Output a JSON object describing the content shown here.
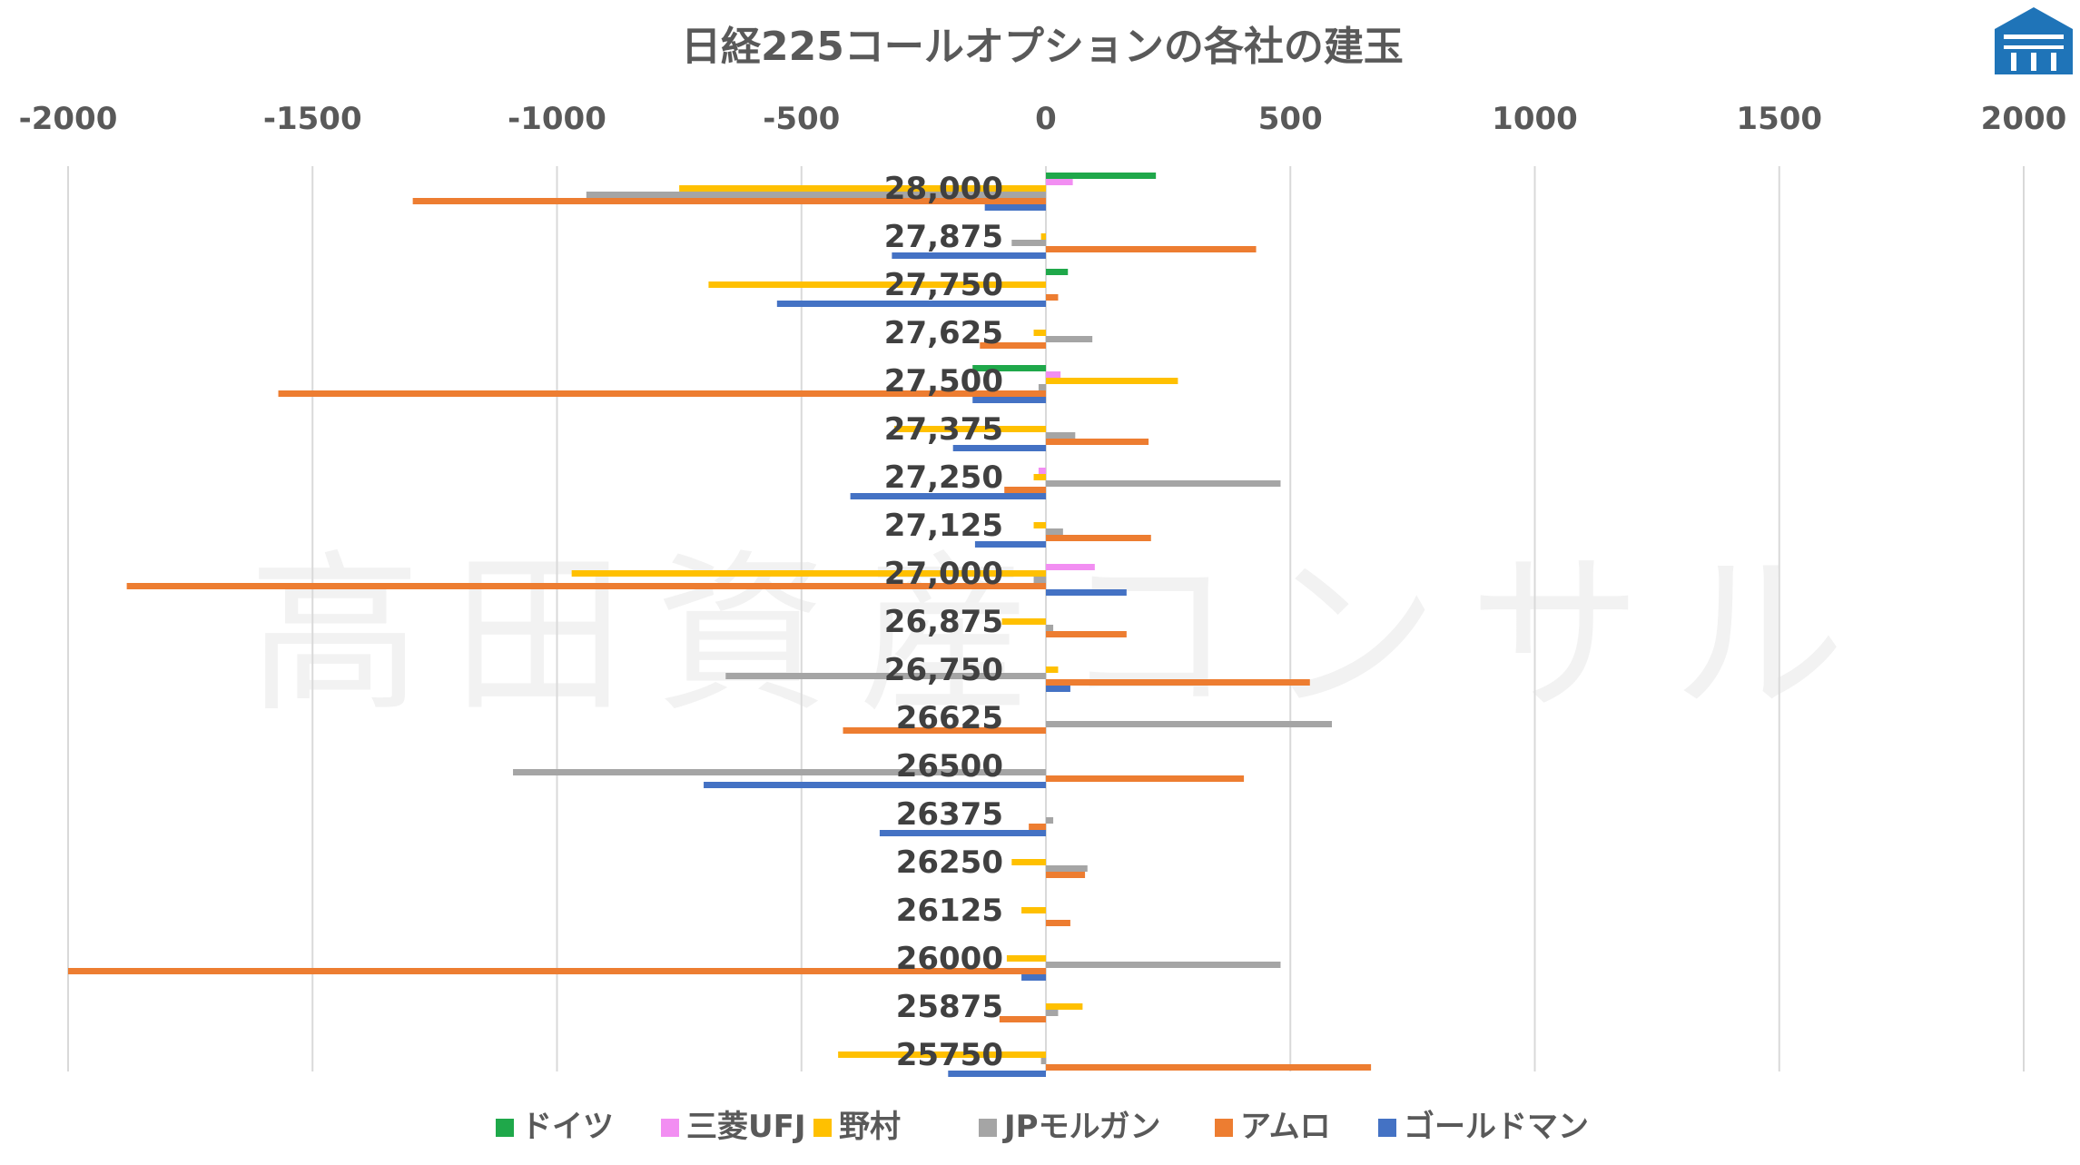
{
  "chart_data": {
    "type": "bar",
    "orientation": "horizontal",
    "title": "日経225コールオプションの各社の建玉",
    "xlim": [
      -2000,
      2000
    ],
    "xticks": [
      -2000,
      -1500,
      -1000,
      -500,
      0,
      500,
      1000,
      1500,
      2000
    ],
    "xtick_labels": [
      "-2000",
      "-1500",
      "-1000",
      "-500",
      "0",
      "500",
      "1000",
      "1500",
      "2000"
    ],
    "grid": true,
    "legend_position": "bottom",
    "watermark": "高田資産コンサル",
    "categories": [
      "28,000",
      "27,875",
      "27,750",
      "27,625",
      "27,500",
      "27,375",
      "27,250",
      "27,125",
      "27,000",
      "26,875",
      "26,750",
      "26625",
      "26500",
      "26375",
      "26250",
      "26125",
      "26000",
      "25875",
      "25750"
    ],
    "series": [
      {
        "name": "ドイツ",
        "color": "#1fa84a",
        "values": [
          225,
          0,
          45,
          0,
          -150,
          0,
          0,
          0,
          0,
          0,
          0,
          0,
          0,
          0,
          0,
          0,
          0,
          0,
          0
        ]
      },
      {
        "name": "三菱UFJ",
        "color": "#f28ef2",
        "values": [
          55,
          0,
          0,
          0,
          30,
          0,
          -15,
          0,
          100,
          0,
          0,
          0,
          0,
          0,
          0,
          0,
          0,
          0,
          0
        ]
      },
      {
        "name": "野村",
        "color": "#ffc000",
        "values": [
          -750,
          -10,
          -690,
          -25,
          270,
          -310,
          -25,
          -25,
          -970,
          -90,
          25,
          0,
          0,
          0,
          -70,
          -50,
          -80,
          75,
          -425
        ]
      },
      {
        "name": "JPモルガン",
        "color": "#a5a5a5",
        "values": [
          -940,
          -70,
          0,
          95,
          -15,
          60,
          480,
          35,
          -25,
          15,
          -655,
          585,
          -1090,
          15,
          85,
          0,
          480,
          25,
          -10
        ]
      },
      {
        "name": "アムロ",
        "color": "#ed7d31",
        "values": [
          -1295,
          430,
          25,
          -135,
          -1570,
          210,
          -85,
          215,
          -1880,
          165,
          540,
          -415,
          405,
          -35,
          80,
          50,
          -2000,
          -95,
          665
        ]
      },
      {
        "name": "ゴールドマン",
        "color": "#4472c4",
        "values": [
          -125,
          -315,
          -550,
          0,
          -150,
          -190,
          -400,
          -145,
          165,
          0,
          50,
          0,
          -700,
          -340,
          0,
          0,
          -50,
          0,
          -200
        ]
      }
    ]
  },
  "logo": {
    "name": "company-emblem",
    "color": "#1f74b8"
  }
}
